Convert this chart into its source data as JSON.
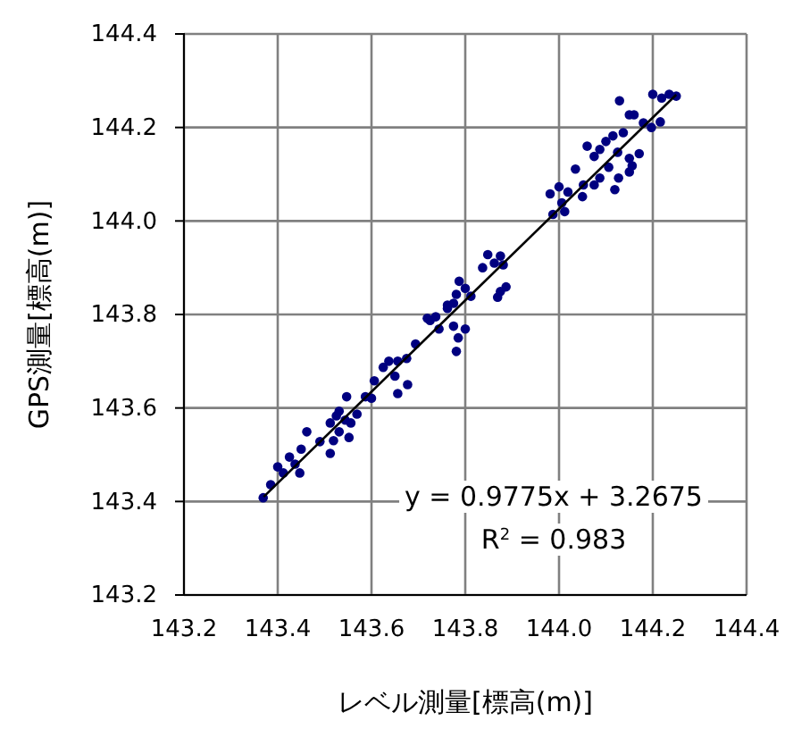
{
  "chart_data": {
    "type": "scatter",
    "xlabel": "レベル測量[標高(m)]",
    "ylabel": "GPS測量[標高(m)]",
    "xlim": [
      143.2,
      144.4
    ],
    "ylim": [
      143.2,
      144.4
    ],
    "xticks": [
      {
        "value": 143.2,
        "label": "143.2"
      },
      {
        "value": 143.4,
        "label": "143.4"
      },
      {
        "value": 143.6,
        "label": "143.6"
      },
      {
        "value": 143.8,
        "label": "143.8"
      },
      {
        "value": 144.0,
        "label": "144.0"
      },
      {
        "value": 144.2,
        "label": "144.2"
      },
      {
        "value": 144.4,
        "label": "144.4"
      }
    ],
    "yticks": [
      {
        "value": 143.2,
        "label": "143.2"
      },
      {
        "value": 143.4,
        "label": "143.4"
      },
      {
        "value": 143.6,
        "label": "143.6"
      },
      {
        "value": 143.8,
        "label": "143.8"
      },
      {
        "value": 144.0,
        "label": "144.0"
      },
      {
        "value": 144.2,
        "label": "144.2"
      },
      {
        "value": 144.4,
        "label": "144.4"
      }
    ],
    "grid": true,
    "series": [
      {
        "marker": "circle",
        "color": "#000080",
        "x": [
          144.235,
          144.2,
          144.25,
          144.219,
          144.129,
          144.15,
          144.16,
          144.18,
          144.216,
          144.197,
          144.137,
          144.115,
          144.1,
          144.06,
          144.087,
          144.125,
          144.171,
          144.15,
          144.075,
          144.035,
          144.156,
          144.15,
          144.127,
          144.106,
          144.087,
          144.075,
          144.052,
          144.119,
          144.0,
          143.981,
          144.019,
          144.05,
          144.006,
          143.987,
          144.012,
          143.875,
          143.848,
          143.862,
          143.837,
          143.881,
          143.887,
          143.875,
          143.869,
          143.787,
          143.8,
          143.781,
          143.812,
          143.762,
          143.775,
          143.719,
          143.737,
          143.762,
          143.725,
          143.744,
          143.775,
          143.8,
          143.785,
          143.781,
          143.694,
          143.675,
          143.656,
          143.637,
          143.625,
          143.65,
          143.656,
          143.677,
          143.606,
          143.587,
          143.6,
          143.547,
          143.531,
          143.525,
          143.544,
          143.556,
          143.512,
          143.569,
          143.531,
          143.552,
          143.519,
          143.512,
          143.49,
          143.462,
          143.45,
          143.425,
          143.437,
          143.4,
          143.412,
          143.447,
          143.385,
          143.369
        ],
        "values": [
          144.271,
          144.271,
          144.267,
          144.263,
          144.257,
          144.227,
          144.227,
          144.21,
          144.212,
          144.2,
          144.189,
          144.182,
          144.17,
          144.16,
          144.153,
          144.147,
          144.144,
          144.134,
          144.138,
          144.111,
          144.118,
          144.105,
          144.092,
          144.115,
          144.092,
          144.077,
          144.077,
          144.067,
          144.073,
          144.058,
          144.062,
          144.052,
          144.039,
          144.014,
          144.02,
          143.925,
          143.928,
          143.91,
          143.9,
          143.906,
          143.859,
          143.849,
          143.837,
          143.871,
          143.856,
          143.843,
          143.839,
          143.82,
          143.824,
          143.792,
          143.795,
          143.813,
          143.787,
          143.769,
          143.775,
          143.769,
          143.75,
          143.721,
          143.737,
          143.706,
          143.7,
          143.7,
          143.687,
          143.668,
          143.631,
          143.65,
          143.658,
          143.624,
          143.621,
          143.624,
          143.593,
          143.583,
          143.574,
          143.568,
          143.568,
          143.587,
          143.549,
          143.537,
          143.53,
          143.503,
          143.528,
          143.549,
          143.512,
          143.495,
          143.48,
          143.474,
          143.461,
          143.461,
          143.436,
          143.408
        ]
      },
      {
        "type": "line",
        "color": "#000000",
        "x": [
          143.37,
          144.25
        ],
        "values": [
          143.41,
          144.27
        ]
      }
    ],
    "annotations": [
      "y = 0.9775x + 3.2675",
      "R$^{2}$ = 0.983"
    ]
  }
}
